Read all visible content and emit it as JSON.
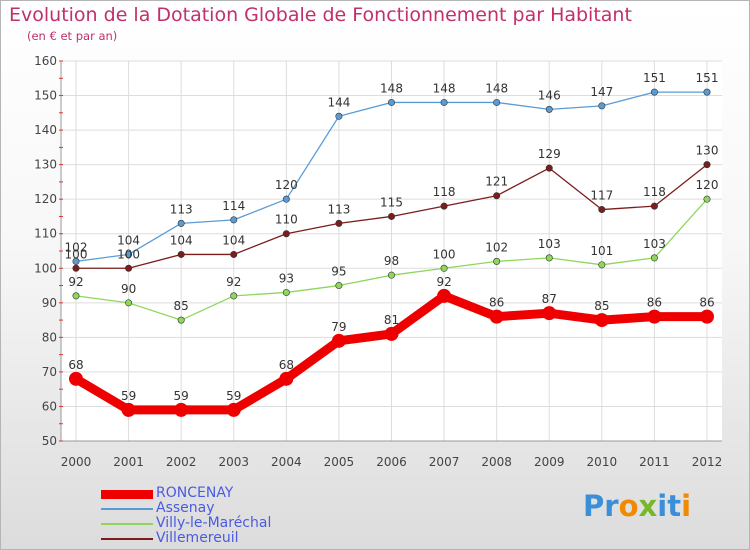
{
  "chart_data": {
    "type": "line",
    "title": "Evolution de la Dotation Globale de Fonctionnement par Habitant",
    "subtitle": "(en € et par an)",
    "xlabel": "",
    "ylabel": "",
    "x": [
      "2000",
      "2001",
      "2002",
      "2003",
      "2004",
      "2005",
      "2006",
      "2007",
      "2008",
      "2009",
      "2010",
      "2011",
      "2012"
    ],
    "ylim": [
      50,
      160
    ],
    "yticks": [
      50,
      60,
      70,
      80,
      90,
      100,
      110,
      120,
      130,
      140,
      150,
      160
    ],
    "grid": true,
    "legend_position": "bottom-left",
    "series": [
      {
        "name": "RONCENAY",
        "color": "#ee0000",
        "values": [
          68,
          59,
          59,
          59,
          68,
          79,
          81,
          92,
          86,
          87,
          85,
          86,
          86
        ]
      },
      {
        "name": "Assenay",
        "color": "#5b9bd5",
        "values": [
          102,
          104,
          113,
          114,
          120,
          144,
          148,
          148,
          148,
          146,
          147,
          151,
          151
        ]
      },
      {
        "name": "Villy-le-Maréchal",
        "color": "#8fd65c",
        "values": [
          92,
          90,
          85,
          92,
          93,
          95,
          98,
          100,
          102,
          103,
          101,
          103,
          120
        ]
      },
      {
        "name": "Villemereuil",
        "color": "#7b1d1d",
        "values": [
          100,
          100,
          104,
          104,
          110,
          113,
          115,
          118,
          121,
          129,
          117,
          118,
          130
        ]
      }
    ]
  },
  "logo": {
    "text": "Proxiti",
    "letter_colors": [
      "#3a8fd8",
      "#3a8fd8",
      "#f08a00",
      "#76b82a",
      "#3a8fd8",
      "#3a8fd8",
      "#f08a00"
    ]
  }
}
